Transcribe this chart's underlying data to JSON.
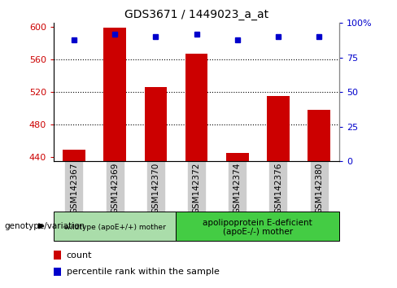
{
  "title": "GDS3671 / 1449023_a_at",
  "categories": [
    "GSM142367",
    "GSM142369",
    "GSM142370",
    "GSM142372",
    "GSM142374",
    "GSM142376",
    "GSM142380"
  ],
  "bar_values": [
    449,
    599,
    526,
    567,
    445,
    515,
    498
  ],
  "percentile_values": [
    88,
    92,
    90,
    92,
    88,
    90,
    90
  ],
  "bar_color": "#cc0000",
  "percentile_color": "#0000cc",
  "ylim_left": [
    435,
    605
  ],
  "ylim_right": [
    0,
    100
  ],
  "yticks_left": [
    440,
    480,
    520,
    560,
    600
  ],
  "yticks_right": [
    0,
    25,
    50,
    75,
    100
  ],
  "yticklabels_right": [
    "0",
    "25",
    "50",
    "75",
    "100%"
  ],
  "grid_dotted_values": [
    480,
    520,
    560
  ],
  "group1_label": "wildtype (apoE+/+) mother",
  "group2_label": "apolipoprotein E-deficient\n(apoE-/-) mother",
  "group1_n": 3,
  "group2_n": 4,
  "group1_color": "#aaddaa",
  "group2_color": "#44cc44",
  "genotype_label": "genotype/variation",
  "legend1_label": "count",
  "legend2_label": "percentile rank within the sample",
  "xticklabel_bg": "#cccccc",
  "bar_bottom": 435,
  "bar_width": 0.55
}
